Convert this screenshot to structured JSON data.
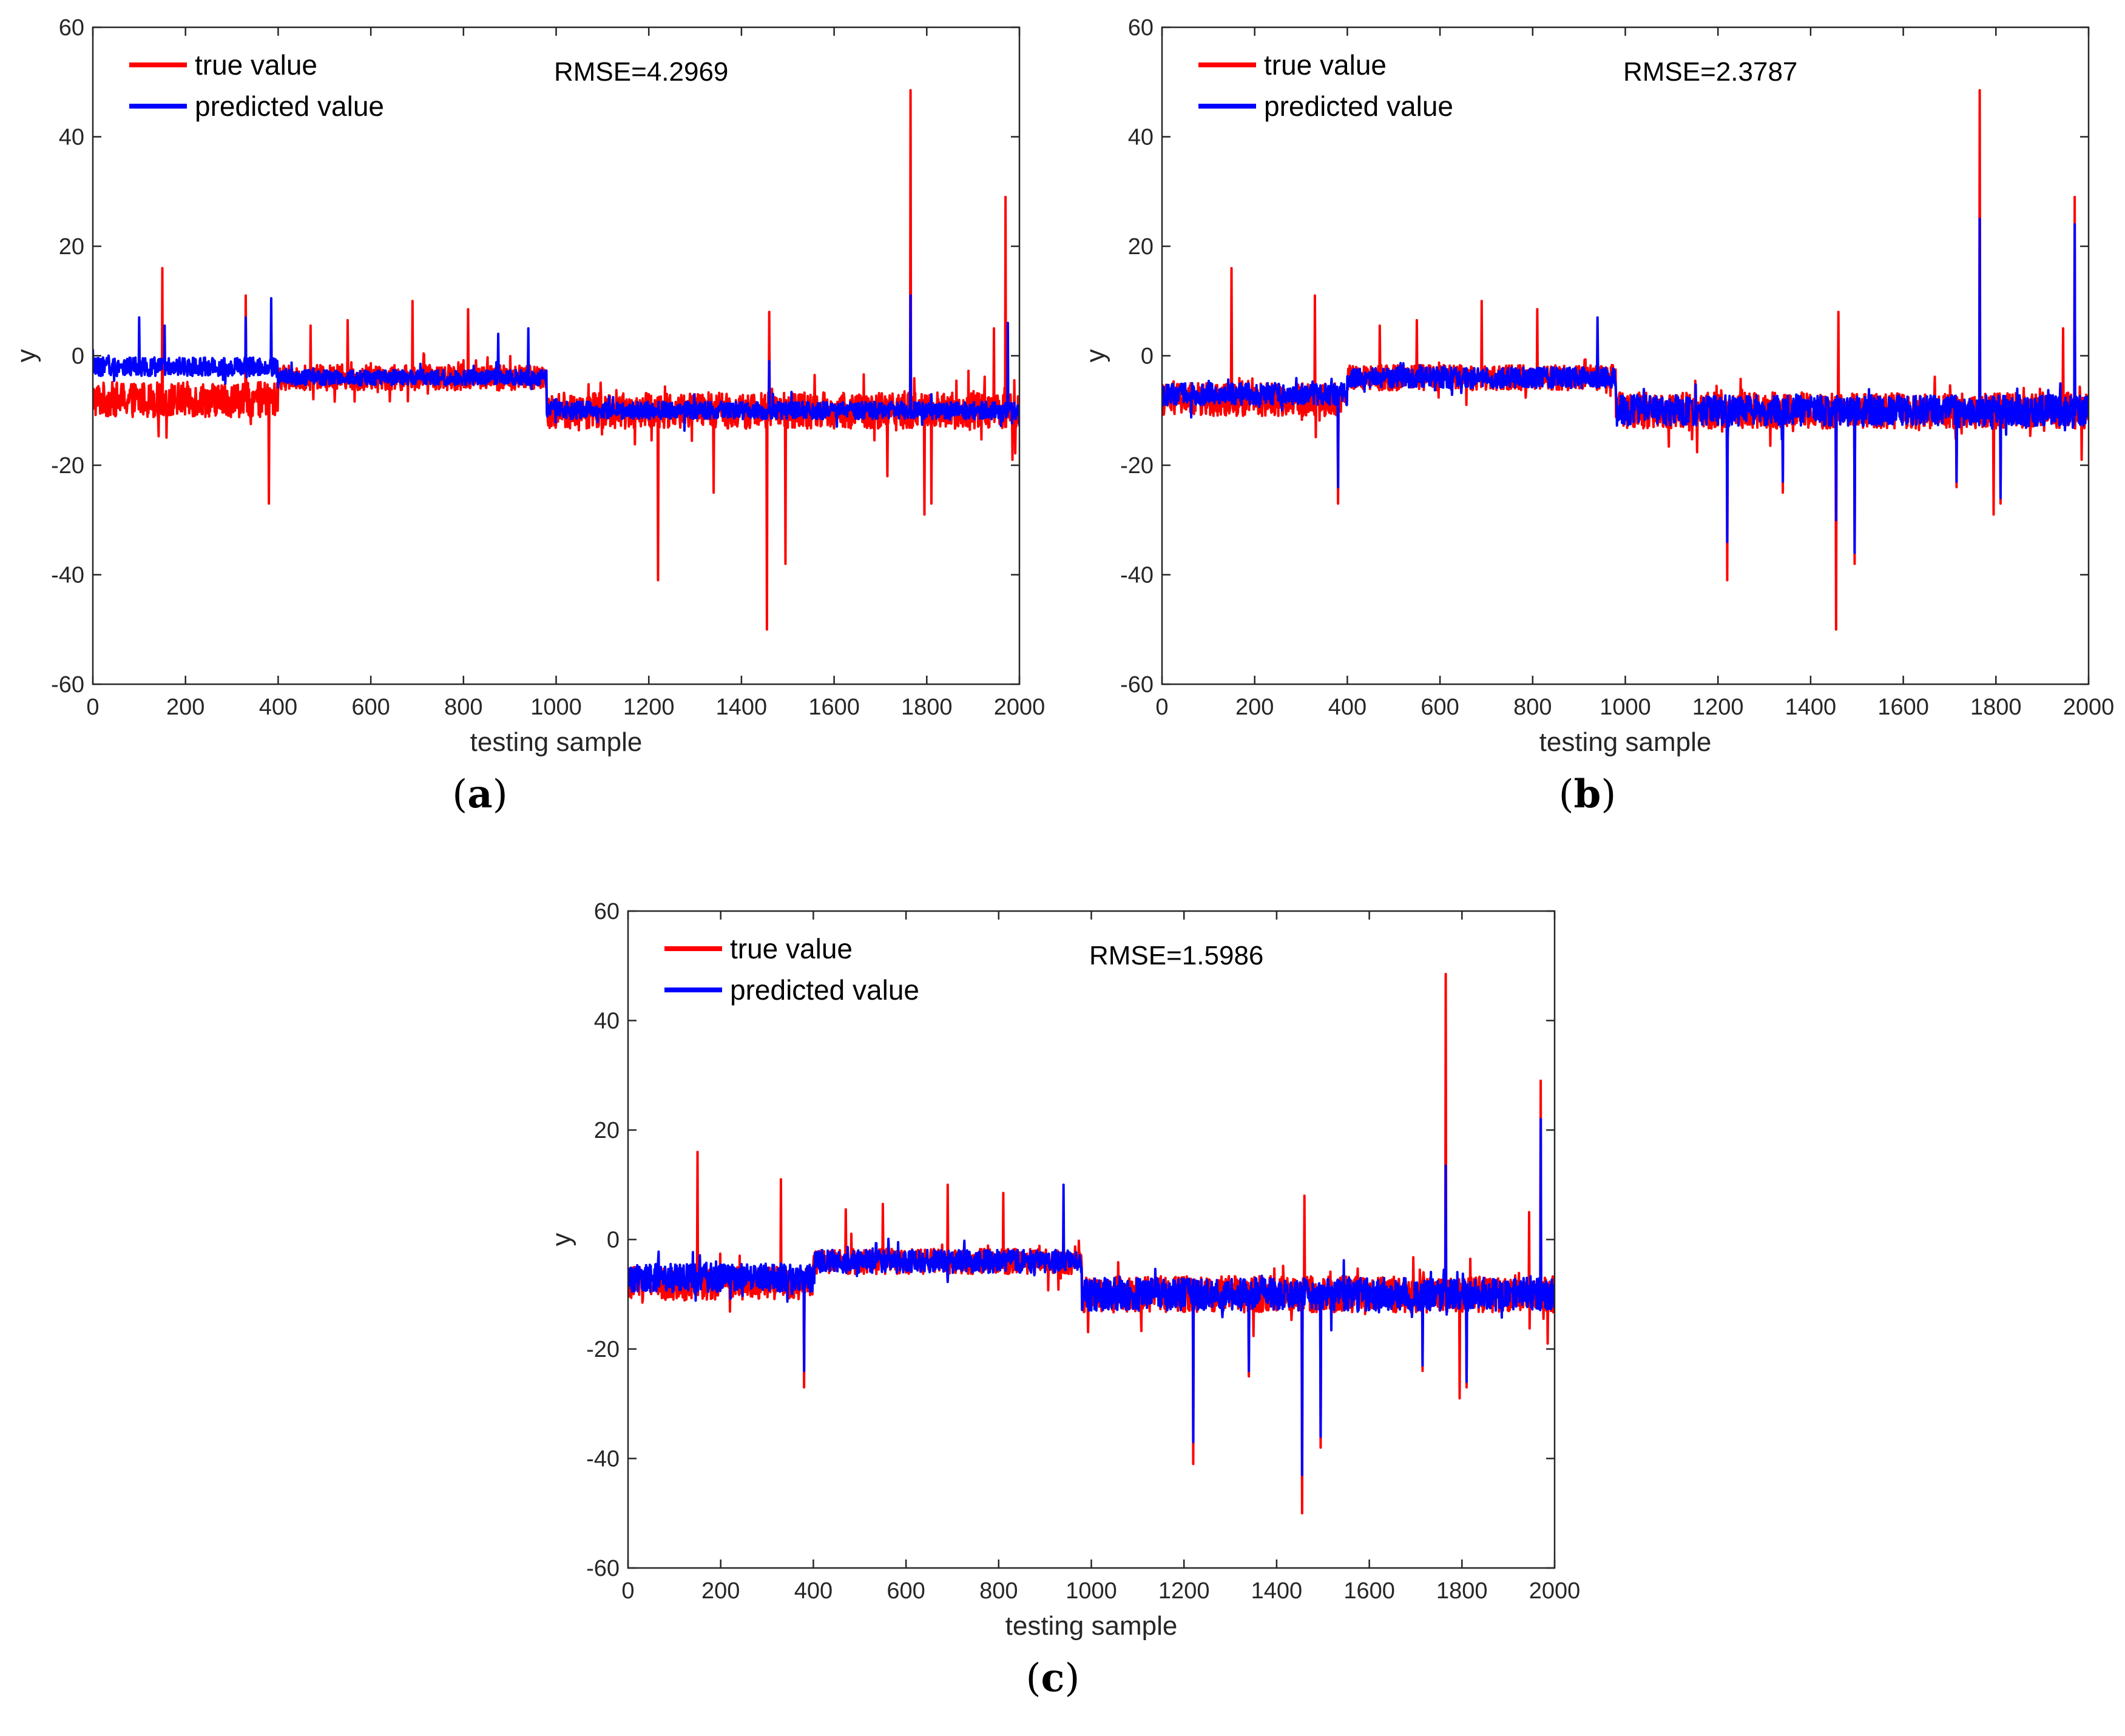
{
  "colors": {
    "true": "#ff0000",
    "predicted": "#0000ff",
    "axis": "#262626",
    "background": "#ffffff"
  },
  "legend": {
    "true_label": "true value",
    "predicted_label": "predicted value"
  },
  "panels": [
    {
      "id": "a",
      "label_open": "(",
      "label_letter": "a",
      "label_close": ")",
      "rmse_text": "RMSE=4.2969"
    },
    {
      "id": "b",
      "label_open": "(",
      "label_letter": "b",
      "label_close": ")",
      "rmse_text": "RMSE=2.3787"
    },
    {
      "id": "c",
      "label_open": "(",
      "label_letter": "c",
      "label_close": ")",
      "rmse_text": "RMSE=1.5986"
    }
  ],
  "chart_data": [
    {
      "type": "line",
      "panel": "a",
      "title": "",
      "xlabel": "testing sample",
      "ylabel": "y",
      "xlim": [
        0,
        2000
      ],
      "ylim": [
        -60,
        60
      ],
      "xticks": [
        0,
        200,
        400,
        600,
        800,
        1000,
        1200,
        1400,
        1600,
        1800,
        2000
      ],
      "yticks": [
        -60,
        -40,
        -20,
        0,
        20,
        40,
        60
      ],
      "annotation": "RMSE=4.2969",
      "legend": [
        "true value",
        "predicted value"
      ],
      "legend_position": "top-left",
      "series": [
        {
          "name": "true value",
          "noisy": true,
          "segments": [
            {
              "from": 0,
              "to": 400,
              "mean": -8,
              "noise": 3.2
            },
            {
              "from": 400,
              "to": 980,
              "mean": -4,
              "noise": 2.3
            },
            {
              "from": 980,
              "to": 2000,
              "mean": -10,
              "noise": 3.3
            }
          ],
          "spikes": [
            [
              150,
              16
            ],
            [
              330,
              11
            ],
            [
              380,
              -27
            ],
            [
              470,
              5.5
            ],
            [
              550,
              6.5
            ],
            [
              690,
              10
            ],
            [
              810,
              8.5
            ],
            [
              1220,
              -41
            ],
            [
              1340,
              -25
            ],
            [
              1460,
              8
            ],
            [
              1455,
              -50
            ],
            [
              1495,
              -38
            ],
            [
              1715,
              -22
            ],
            [
              1765,
              48.5
            ],
            [
              1795,
              -29
            ],
            [
              1810,
              -27
            ],
            [
              1945,
              5
            ],
            [
              1970,
              29
            ],
            [
              1985,
              -19
            ]
          ]
        },
        {
          "name": "predicted value",
          "noisy": true,
          "segments": [
            {
              "from": 0,
              "to": 400,
              "mean": -2,
              "noise": 1.7
            },
            {
              "from": 400,
              "to": 980,
              "mean": -4,
              "noise": 1.4
            },
            {
              "from": 980,
              "to": 2000,
              "mean": -10,
              "noise": 1.6
            }
          ],
          "spikes": [
            [
              100,
              7
            ],
            [
              155,
              5.5
            ],
            [
              330,
              7
            ],
            [
              385,
              10.5
            ],
            [
              875,
              4
            ],
            [
              940,
              5
            ],
            [
              1460,
              -1
            ],
            [
              1765,
              11
            ],
            [
              1975,
              6
            ]
          ]
        }
      ]
    },
    {
      "type": "line",
      "panel": "b",
      "title": "",
      "xlabel": "testing sample",
      "ylabel": "y",
      "xlim": [
        0,
        2000
      ],
      "ylim": [
        -60,
        60
      ],
      "xticks": [
        0,
        200,
        400,
        600,
        800,
        1000,
        1200,
        1400,
        1600,
        1800,
        2000
      ],
      "yticks": [
        -60,
        -40,
        -20,
        0,
        20,
        40,
        60
      ],
      "annotation": "RMSE=2.3787",
      "legend": [
        "true value",
        "predicted value"
      ],
      "legend_position": "top-left",
      "series": [
        {
          "name": "true value",
          "noisy": true,
          "segments": [
            {
              "from": 0,
              "to": 400,
              "mean": -8,
              "noise": 3.0
            },
            {
              "from": 400,
              "to": 980,
              "mean": -4,
              "noise": 2.3
            },
            {
              "from": 980,
              "to": 2000,
              "mean": -10,
              "noise": 3.3
            }
          ],
          "spikes": [
            [
              150,
              16
            ],
            [
              330,
              11
            ],
            [
              380,
              -27
            ],
            [
              470,
              5.5
            ],
            [
              550,
              6.5
            ],
            [
              690,
              10
            ],
            [
              810,
              8.5
            ],
            [
              1220,
              -41
            ],
            [
              1340,
              -25
            ],
            [
              1460,
              8
            ],
            [
              1455,
              -50
            ],
            [
              1495,
              -38
            ],
            [
              1715,
              -24
            ],
            [
              1765,
              48.5
            ],
            [
              1795,
              -29
            ],
            [
              1810,
              -27
            ],
            [
              1945,
              5
            ],
            [
              1970,
              29
            ],
            [
              1985,
              -19
            ]
          ]
        },
        {
          "name": "predicted value",
          "noisy": true,
          "segments": [
            {
              "from": 0,
              "to": 400,
              "mean": -7,
              "noise": 2.0
            },
            {
              "from": 400,
              "to": 980,
              "mean": -4,
              "noise": 1.9
            },
            {
              "from": 980,
              "to": 2000,
              "mean": -10,
              "noise": 2.8
            }
          ],
          "spikes": [
            [
              380,
              -24
            ],
            [
              940,
              7
            ],
            [
              1220,
              -34
            ],
            [
              1340,
              -23
            ],
            [
              1455,
              -30
            ],
            [
              1495,
              -36
            ],
            [
              1715,
              -23
            ],
            [
              1765,
              25
            ],
            [
              1810,
              -26
            ],
            [
              1970,
              24
            ]
          ]
        }
      ]
    },
    {
      "type": "line",
      "panel": "c",
      "title": "",
      "xlabel": "testing sample",
      "ylabel": "y",
      "xlim": [
        0,
        2000
      ],
      "ylim": [
        -60,
        60
      ],
      "xticks": [
        0,
        200,
        400,
        600,
        800,
        1000,
        1200,
        1400,
        1600,
        1800,
        2000
      ],
      "yticks": [
        -60,
        -40,
        -20,
        0,
        20,
        40,
        60
      ],
      "annotation": "RMSE=1.5986",
      "legend": [
        "true value",
        "predicted value"
      ],
      "legend_position": "top-left",
      "series": [
        {
          "name": "true value",
          "noisy": true,
          "segments": [
            {
              "from": 0,
              "to": 400,
              "mean": -8,
              "noise": 3.0
            },
            {
              "from": 400,
              "to": 980,
              "mean": -4,
              "noise": 2.3
            },
            {
              "from": 980,
              "to": 2000,
              "mean": -10,
              "noise": 3.3
            }
          ],
          "spikes": [
            [
              150,
              16
            ],
            [
              330,
              11
            ],
            [
              380,
              -27
            ],
            [
              470,
              5.5
            ],
            [
              550,
              6.5
            ],
            [
              690,
              10
            ],
            [
              810,
              8.5
            ],
            [
              1220,
              -41
            ],
            [
              1340,
              -25
            ],
            [
              1460,
              8
            ],
            [
              1455,
              -50
            ],
            [
              1495,
              -38
            ],
            [
              1715,
              -24
            ],
            [
              1765,
              48.5
            ],
            [
              1795,
              -29
            ],
            [
              1810,
              -27
            ],
            [
              1945,
              5
            ],
            [
              1970,
              29
            ],
            [
              1985,
              -19
            ]
          ]
        },
        {
          "name": "predicted value",
          "noisy": true,
          "segments": [
            {
              "from": 0,
              "to": 400,
              "mean": -7,
              "noise": 2.6
            },
            {
              "from": 400,
              "to": 980,
              "mean": -4,
              "noise": 2.1
            },
            {
              "from": 980,
              "to": 2000,
              "mean": -10,
              "noise": 3.0
            }
          ],
          "spikes": [
            [
              380,
              -24
            ],
            [
              940,
              10
            ],
            [
              1220,
              -37
            ],
            [
              1340,
              -24
            ],
            [
              1455,
              -43
            ],
            [
              1495,
              -36
            ],
            [
              1715,
              -23
            ],
            [
              1765,
              13.5
            ],
            [
              1810,
              -26
            ],
            [
              1970,
              22
            ]
          ]
        }
      ]
    }
  ]
}
